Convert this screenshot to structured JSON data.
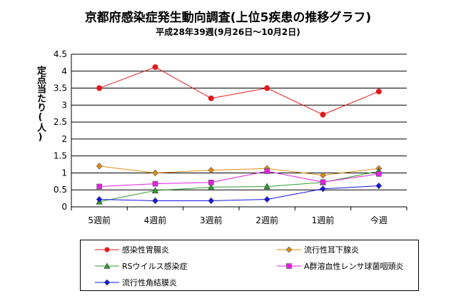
{
  "chart_data": {
    "type": "line",
    "title": "京都府感染症発生動向調査(上位5疾患の推移グラフ)",
    "subtitle": "平成28年39週(9月26日～10月2日)",
    "ylabel": "定点当たり(人)",
    "xlabel": "",
    "categories": [
      "5週前",
      "4週前",
      "3週前",
      "2週前",
      "1週前",
      "今週"
    ],
    "ylim": [
      0,
      4.5
    ],
    "yticks": [
      "0",
      "0.5",
      "1",
      "1.5",
      "2",
      "2.5",
      "3",
      "3.5",
      "4",
      "4.5"
    ],
    "grid": true,
    "legend_position": "bottom",
    "series": [
      {
        "name": "感染性胃腸炎",
        "color": "#e31a1c",
        "marker": "circle",
        "values": [
          3.5,
          4.12,
          3.2,
          3.5,
          2.72,
          3.4
        ]
      },
      {
        "name": "流行性耳下腺炎",
        "color": "#e08a10",
        "marker": "diamond",
        "values": [
          1.2,
          1.0,
          1.08,
          1.13,
          0.93,
          1.13
        ]
      },
      {
        "name": "RSウイルス感染症",
        "color": "#2f9e2f",
        "marker": "triangle",
        "values": [
          0.15,
          0.48,
          0.58,
          0.6,
          0.72,
          1.05
        ]
      },
      {
        "name": "A群溶血性レンサ球菌咽頭炎",
        "color": "#e61ee6",
        "marker": "square",
        "values": [
          0.6,
          0.68,
          0.72,
          1.05,
          0.73,
          0.97
        ]
      },
      {
        "name": "流行性角結膜炎",
        "color": "#1414e6",
        "marker": "diamond",
        "values": [
          0.22,
          0.18,
          0.18,
          0.22,
          0.53,
          0.62
        ]
      }
    ]
  }
}
